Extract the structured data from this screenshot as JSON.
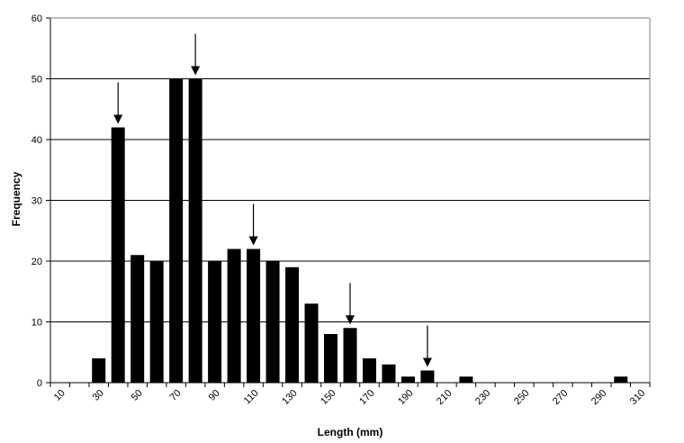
{
  "chart_data": {
    "type": "bar",
    "title": "",
    "xlabel": "Length (mm)",
    "ylabel": "Frequency",
    "ylim": [
      0,
      60
    ],
    "yticks": [
      0,
      10,
      20,
      30,
      40,
      50,
      60
    ],
    "grid": "horizontal",
    "bar_color": "#000000",
    "categories": [
      10,
      20,
      30,
      40,
      50,
      60,
      70,
      80,
      90,
      100,
      110,
      120,
      130,
      140,
      150,
      160,
      170,
      180,
      190,
      200,
      210,
      220,
      230,
      240,
      250,
      260,
      270,
      280,
      290,
      300,
      310
    ],
    "tick_labels": [
      "10",
      "30",
      "50",
      "70",
      "90",
      "110",
      "130",
      "150",
      "170",
      "190",
      "210",
      "230",
      "250",
      "270",
      "290",
      "310"
    ],
    "values": [
      0,
      0,
      4,
      42,
      21,
      20,
      50,
      50,
      20,
      22,
      22,
      20,
      19,
      13,
      8,
      9,
      4,
      3,
      1,
      2,
      0,
      1,
      0,
      0,
      0,
      0,
      0,
      0,
      0,
      1,
      0
    ],
    "arrows_at_categories": [
      40,
      80,
      110,
      160,
      200
    ]
  }
}
